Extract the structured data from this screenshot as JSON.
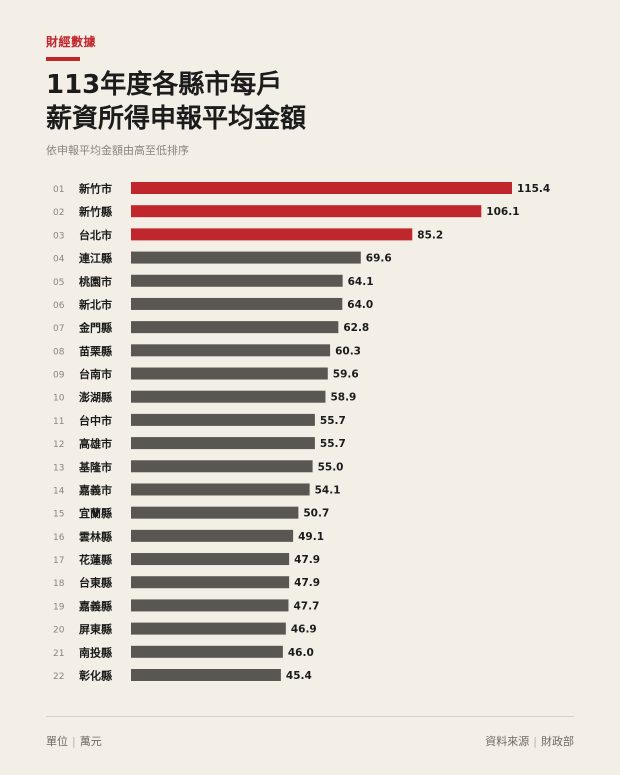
{
  "header": {
    "section": "財經數據",
    "title_line1": "113年度各縣市每戶",
    "title_line2": "薪資所得申報平均金額",
    "subtitle": "依申報平均金額由高至低排序"
  },
  "colors": {
    "highlight": "#c0272d",
    "default": "#5a5752",
    "accent": "#c0272d"
  },
  "chart_data": {
    "type": "bar",
    "orientation": "horizontal",
    "ranks": [
      "01",
      "02",
      "03",
      "04",
      "05",
      "06",
      "07",
      "08",
      "09",
      "10",
      "11",
      "12",
      "13",
      "14",
      "15",
      "16",
      "17",
      "18",
      "19",
      "20",
      "21",
      "22"
    ],
    "categories": [
      "新竹市",
      "新竹縣",
      "台北市",
      "連江縣",
      "桃園市",
      "新北市",
      "金門縣",
      "苗栗縣",
      "台南市",
      "澎湖縣",
      "台中市",
      "高雄市",
      "基隆市",
      "嘉義市",
      "宜蘭縣",
      "雲林縣",
      "花蓮縣",
      "台東縣",
      "嘉義縣",
      "屏東縣",
      "南投縣",
      "彰化縣"
    ],
    "values": [
      115.4,
      106.1,
      85.2,
      69.6,
      64.1,
      64.0,
      62.8,
      60.3,
      59.6,
      58.9,
      55.7,
      55.7,
      55.0,
      54.1,
      50.7,
      49.1,
      47.9,
      47.9,
      47.7,
      46.9,
      46.0,
      45.4
    ],
    "highlighted_top": 3,
    "xlim": [
      0,
      115.4
    ],
    "grid": false,
    "legend": "none"
  },
  "footer": {
    "unit_label": "單位",
    "unit_value": "萬元",
    "source_label": "資料來源",
    "source_value": "財政部"
  }
}
